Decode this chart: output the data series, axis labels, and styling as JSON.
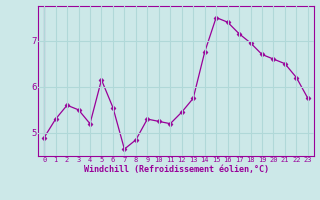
{
  "x": [
    0,
    1,
    2,
    3,
    4,
    5,
    6,
    7,
    8,
    9,
    10,
    11,
    12,
    13,
    14,
    15,
    16,
    17,
    18,
    19,
    20,
    21,
    22,
    23
  ],
  "y": [
    4.9,
    5.3,
    5.6,
    5.5,
    5.2,
    6.15,
    5.55,
    4.65,
    4.85,
    5.3,
    5.25,
    5.2,
    5.45,
    5.75,
    6.75,
    7.5,
    7.4,
    7.15,
    6.95,
    6.7,
    6.6,
    6.5,
    6.2,
    5.75
  ],
  "line_color": "#990099",
  "marker": "D",
  "marker_size": 2.5,
  "bg_color": "#cce8e8",
  "grid_color": "#b0d8d8",
  "xlabel": "Windchill (Refroidissement éolien,°C)",
  "xlabel_color": "#990099",
  "tick_color": "#990099",
  "ylim": [
    4.5,
    7.75
  ],
  "yticks": [
    5,
    6,
    7
  ],
  "xlim": [
    -0.5,
    23.5
  ]
}
